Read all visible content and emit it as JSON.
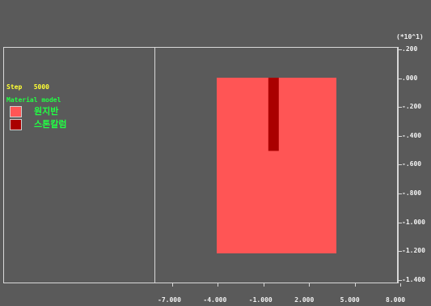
{
  "header": {
    "scale_label": "(*10^1)"
  },
  "info": {
    "step_text": "Step   5000",
    "material_title": "Material model"
  },
  "legend": [
    {
      "label": "원지반",
      "color": "#ff5555"
    },
    {
      "label": "스톤칼럼",
      "color": "#aa0000"
    }
  ],
  "y_ticks": [
    ".200",
    ".000",
    "-.200",
    "-.400",
    "-.600",
    "-.800",
    "-1.000",
    "-1.200",
    "-1.400"
  ],
  "x_ticks": [
    "-7.000",
    "-4.000",
    "-1.000",
    "2.000",
    "5.000",
    "8.000"
  ],
  "model": {
    "ground": {
      "name": "원지반",
      "x_range": [
        -4.0,
        4.0
      ],
      "y_range": [
        -1.2,
        0.0
      ],
      "color": "#ff5555"
    },
    "stone_column": {
      "name": "스톤칼럼",
      "x_range": [
        -0.55,
        0.15
      ],
      "y_range": [
        -0.5,
        0.0
      ],
      "color": "#aa0000"
    }
  }
}
